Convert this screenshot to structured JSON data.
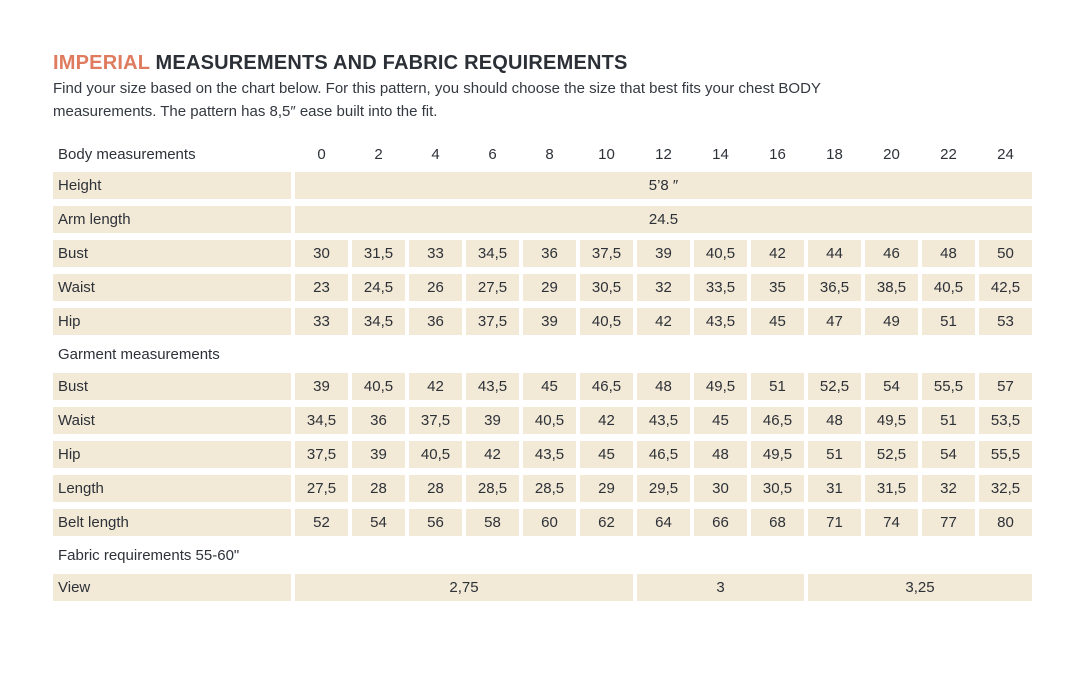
{
  "page": {
    "title_accent": "IMPERIAL",
    "title_rest": " MEASUREMENTS AND FABRIC REQUIREMENTS",
    "subtitle_lines": [
      "Find your size based on the chart below. For this pattern, you should choose the size that best fits your chest BODY",
      "measurements.  The pattern has 8,5″ ease built into the fit."
    ]
  },
  "colors": {
    "accent": "#df7b5e",
    "cell_background": "#f2e9d6",
    "text": "#2d3138",
    "page_background": "#ffffff"
  },
  "chart_data": {
    "type": "table",
    "title": "Imperial measurements and fabric requirements",
    "columns": {
      "label_header": "Body measurements",
      "sizes": [
        "0",
        "2",
        "4",
        "6",
        "8",
        "10",
        "12",
        "14",
        "16",
        "18",
        "20",
        "22",
        "24"
      ]
    },
    "rows": [
      {
        "kind": "merged",
        "label": "Height",
        "value": "5’8 ″"
      },
      {
        "kind": "merged",
        "label": "Arm length",
        "value": "24.5"
      },
      {
        "kind": "values",
        "label": "Bust",
        "cells": [
          "30",
          "31,5",
          "33",
          "34,5",
          "36",
          "37,5",
          "39",
          "40,5",
          "42",
          "44",
          "46",
          "48",
          "50"
        ]
      },
      {
        "kind": "values",
        "label": "Waist",
        "cells": [
          "23",
          "24,5",
          "26",
          "27,5",
          "29",
          "30,5",
          "32",
          "33,5",
          "35",
          "36,5",
          "38,5",
          "40,5",
          "42,5"
        ]
      },
      {
        "kind": "values",
        "label": "Hip",
        "cells": [
          "33",
          "34,5",
          "36",
          "37,5",
          "39",
          "40,5",
          "42",
          "43,5",
          "45",
          "47",
          "49",
          "51",
          "53"
        ]
      },
      {
        "kind": "section",
        "label": "Garment measurements"
      },
      {
        "kind": "values",
        "label": "Bust",
        "cells": [
          "39",
          "40,5",
          "42",
          "43,5",
          "45",
          "46,5",
          "48",
          "49,5",
          "51",
          "52,5",
          "54",
          "55,5",
          "57"
        ]
      },
      {
        "kind": "values",
        "label": "Waist",
        "cells": [
          "34,5",
          "36",
          "37,5",
          "39",
          "40,5",
          "42",
          "43,5",
          "45",
          "46,5",
          "48",
          "49,5",
          "51",
          "53,5"
        ]
      },
      {
        "kind": "values",
        "label": "Hip",
        "cells": [
          "37,5",
          "39",
          "40,5",
          "42",
          "43,5",
          "45",
          "46,5",
          "48",
          "49,5",
          "51",
          "52,5",
          "54",
          "55,5"
        ]
      },
      {
        "kind": "values",
        "label": "Length",
        "cells": [
          "27,5",
          "28",
          "28",
          "28,5",
          "28,5",
          "29",
          "29,5",
          "30",
          "30,5",
          "31",
          "31,5",
          "32",
          "32,5"
        ]
      },
      {
        "kind": "values",
        "label": "Belt length",
        "cells": [
          "52",
          "54",
          "56",
          "58",
          "60",
          "62",
          "64",
          "66",
          "68",
          "71",
          "74",
          "77",
          "80"
        ]
      },
      {
        "kind": "section",
        "label": "Fabric requirements 55-60\""
      },
      {
        "kind": "spans",
        "label": "View",
        "cells": [
          {
            "value": "2,75",
            "span": 6
          },
          {
            "value": "3",
            "span": 3
          },
          {
            "value": "3,25",
            "span": 4
          }
        ]
      }
    ]
  }
}
